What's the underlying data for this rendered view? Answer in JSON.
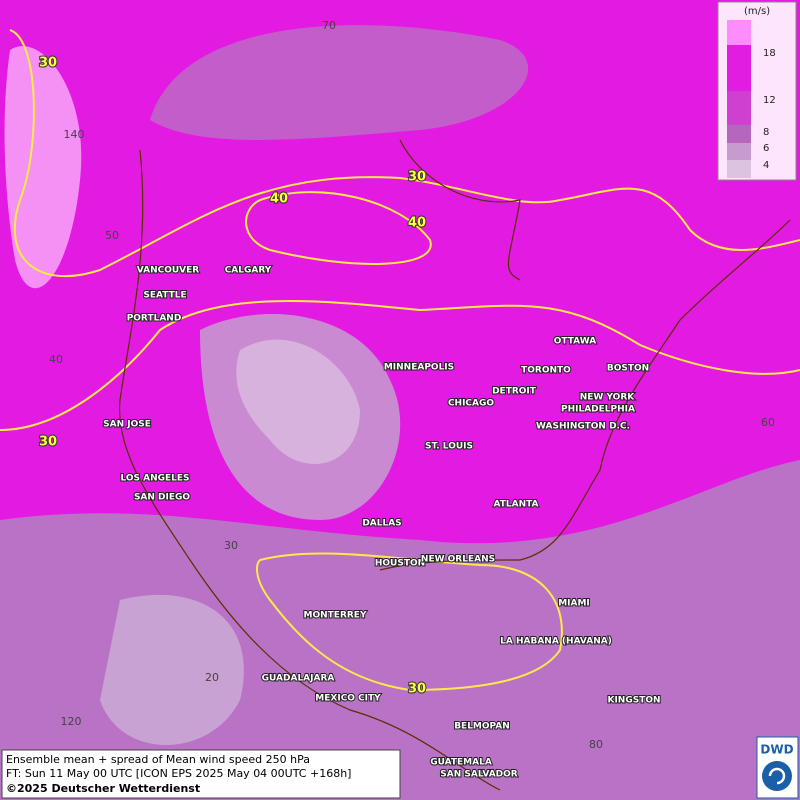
{
  "map": {
    "legend": {
      "unit": "(m/s)",
      "ticks": [
        18,
        12,
        8,
        6,
        4
      ]
    },
    "contour_labels": [
      "30",
      "30",
      "40",
      "40",
      "30",
      "30"
    ],
    "grid_labels": [
      "70",
      "140",
      "50",
      "40",
      "30",
      "20",
      "120",
      "60",
      "80"
    ],
    "cities": [
      "VANCOUVER",
      "CALGARY",
      "SEATTLE",
      "PORTLAND",
      "MINNEAPOLIS",
      "OTTAWA",
      "TORONTO",
      "BOSTON",
      "DETROIT",
      "CHICAGO",
      "NEW YORK",
      "PHILADELPHIA",
      "WASHINGTON D.C.",
      "SAN JOSE",
      "ST. LOUIS",
      "LOS ANGELES",
      "SAN DIEGO",
      "ATLANTA",
      "DALLAS",
      "HOUSTON",
      "NEW ORLEANS",
      "MIAMI",
      "MONTERREY",
      "LA HABANA (HAVANA)",
      "GUADALAJARA",
      "MEXICO CITY",
      "KINGSTON",
      "BELMOPAN",
      "GUATEMALA",
      "SAN SALVADOR"
    ],
    "footer": [
      "Ensemble mean + spread of Mean wind speed 250 hPa",
      "FT: Sun 11 May 00 UTC [ICON EPS 2025 May 04 00UTC +168h]",
      "©2025 Deutscher Wetterdienst"
    ],
    "logo": "DWD"
  }
}
